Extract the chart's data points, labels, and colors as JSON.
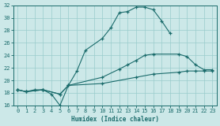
{
  "xlabel": "Humidex (Indice chaleur)",
  "xlim": [
    -0.5,
    23.5
  ],
  "ylim": [
    16,
    32
  ],
  "yticks": [
    16,
    18,
    20,
    22,
    24,
    26,
    28,
    30,
    32
  ],
  "xticks": [
    0,
    1,
    2,
    3,
    4,
    5,
    6,
    7,
    8,
    9,
    10,
    11,
    12,
    13,
    14,
    15,
    16,
    17,
    18,
    19,
    20,
    21,
    22,
    23
  ],
  "background_color": "#cce8e8",
  "grid_color": "#99cccc",
  "line_color": "#1a6b6b",
  "line1_x": [
    0,
    1,
    2,
    3,
    4,
    5,
    6,
    7,
    8,
    10,
    11,
    12,
    13,
    14,
    15,
    16,
    17,
    18
  ],
  "line1_y": [
    18.5,
    18.2,
    18.5,
    18.5,
    17.8,
    16.0,
    19.2,
    21.5,
    24.8,
    26.7,
    28.4,
    30.8,
    31.0,
    31.7,
    31.7,
    31.3,
    29.5,
    27.5
  ],
  "line2_x": [
    0,
    1,
    3,
    5,
    6,
    10,
    12,
    13,
    14,
    15,
    16,
    19,
    20,
    21,
    22,
    23
  ],
  "line2_y": [
    18.5,
    18.2,
    18.5,
    17.8,
    19.2,
    20.5,
    21.8,
    22.5,
    23.2,
    24.0,
    24.2,
    24.2,
    23.8,
    22.5,
    21.7,
    21.7
  ],
  "line3_x": [
    0,
    1,
    3,
    5,
    6,
    10,
    14,
    16,
    19,
    20,
    21,
    22,
    23
  ],
  "line3_y": [
    18.5,
    18.2,
    18.5,
    17.8,
    19.2,
    19.5,
    20.5,
    21.0,
    21.3,
    21.5,
    21.5,
    21.5,
    21.5
  ]
}
